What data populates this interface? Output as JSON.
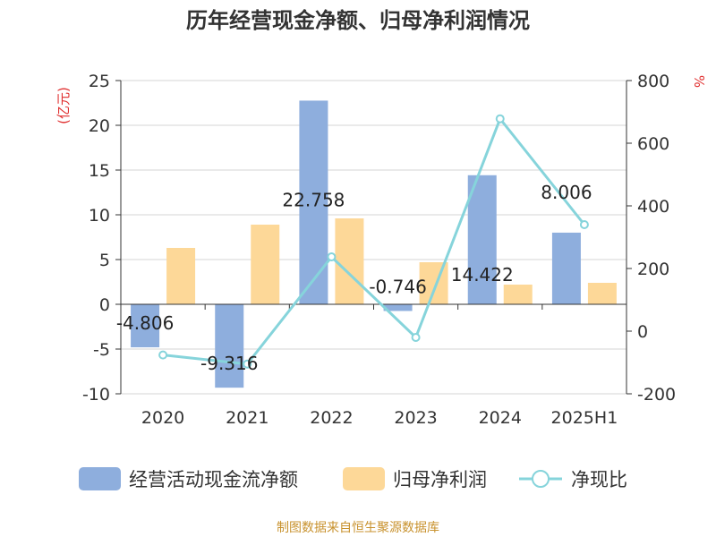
{
  "chart_data": {
    "type": "bar",
    "title": "历年经营现金净额、归母净利润情况",
    "categories": [
      "2020",
      "2021",
      "2022",
      "2023",
      "2024",
      "2025H1"
    ],
    "series": [
      {
        "name": "经营活动现金流净额",
        "type": "bar",
        "axis": "left",
        "color": "#8eaedd",
        "values": [
          -4.806,
          -9.316,
          22.758,
          -0.746,
          14.422,
          8.006
        ],
        "data_labels": [
          "-4.806",
          "-9.316",
          "22.758",
          "-0.746",
          "14.422",
          "8.006"
        ]
      },
      {
        "name": "归母净利润",
        "type": "bar",
        "axis": "left",
        "color": "#fdd898",
        "values": [
          6.3,
          8.9,
          9.6,
          4.7,
          2.2,
          2.4
        ]
      },
      {
        "name": "净现比",
        "type": "line",
        "axis": "right",
        "color": "#86d4db",
        "values": [
          -76,
          -105,
          237,
          -20,
          678,
          340
        ]
      }
    ],
    "y_left": {
      "unit_label": "(亿元)",
      "ylim": [
        -10,
        25
      ],
      "ticks": [
        "-10",
        "-5",
        "0",
        "5",
        "10",
        "15",
        "20",
        "25"
      ]
    },
    "y_right": {
      "unit_label": "%",
      "ylim": [
        -200,
        800
      ],
      "ticks": [
        "-200",
        "0",
        "200",
        "400",
        "600",
        "800"
      ]
    },
    "grid": true,
    "legend_position": "bottom",
    "source": "制图数据来自恒生聚源数据库"
  }
}
